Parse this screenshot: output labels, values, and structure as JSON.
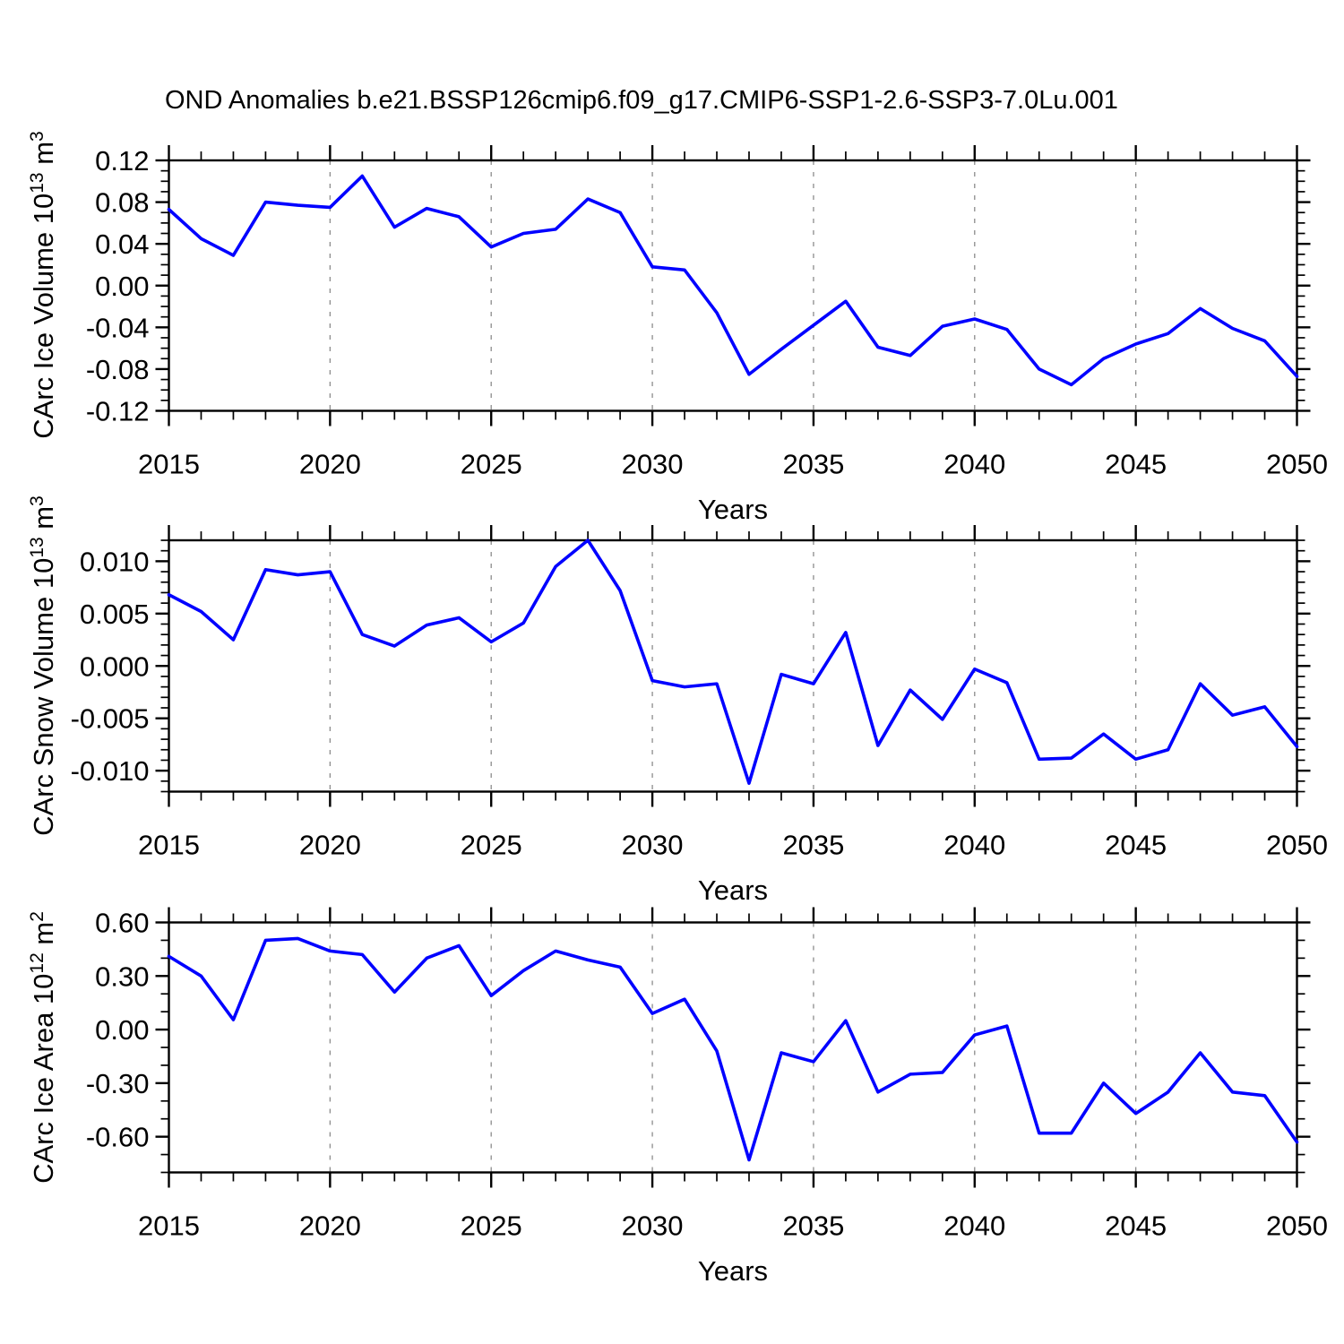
{
  "title": "OND Anomalies b.e21.BSSP126cmip6.f09_g17.CMIP6-SSP1-2.6-SSP3-7.0Lu.001",
  "xlabel": "Years",
  "colors": {
    "line": "#0000ff",
    "frame": "#000000",
    "grid": "#8c8c8c",
    "text": "#000000",
    "background": "#ffffff"
  },
  "x_axis": {
    "range": [
      2015,
      2050
    ],
    "major_step": 5,
    "minor_step": 1,
    "tick_label_years": [
      "2015",
      "2020",
      "2025",
      "2030",
      "2035",
      "2040",
      "2045",
      "2050"
    ],
    "grid_years": [
      2020,
      2025,
      2030,
      2035,
      2040,
      2045
    ]
  },
  "chart_data": [
    {
      "type": "line",
      "title": "",
      "xlabel": "Years",
      "ylabel": {
        "base1": "CArc Ice Volume 10",
        "sup1": "13",
        "base2": " m",
        "sup2": "3"
      },
      "ylim": [
        -0.12,
        0.12
      ],
      "ytick_major_step": 0.04,
      "yminor_step": 0.01,
      "yticks": [
        {
          "v": 0.12,
          "label": "0.12"
        },
        {
          "v": 0.08,
          "label": "0.08"
        },
        {
          "v": 0.04,
          "label": "0.04"
        },
        {
          "v": 0.0,
          "label": "0.00"
        },
        {
          "v": -0.04,
          "label": "-0.04"
        },
        {
          "v": -0.08,
          "label": "-0.08"
        },
        {
          "v": -0.12,
          "label": "-0.12"
        }
      ],
      "x": [
        2015,
        2016,
        2017,
        2018,
        2019,
        2020,
        2021,
        2022,
        2023,
        2024,
        2025,
        2026,
        2027,
        2028,
        2029,
        2030,
        2031,
        2032,
        2033,
        2034,
        2035,
        2036,
        2037,
        2038,
        2039,
        2040,
        2041,
        2042,
        2043,
        2044,
        2045,
        2046,
        2047,
        2048,
        2049,
        2050
      ],
      "values": [
        0.073,
        0.045,
        0.029,
        0.08,
        0.077,
        0.075,
        0.105,
        0.056,
        0.074,
        0.066,
        0.037,
        0.05,
        0.054,
        0.083,
        0.07,
        0.018,
        0.015,
        -0.026,
        -0.085,
        -0.061,
        -0.038,
        -0.015,
        -0.059,
        -0.067,
        -0.039,
        -0.032,
        -0.042,
        -0.08,
        -0.095,
        -0.07,
        -0.056,
        -0.046,
        -0.022,
        -0.041,
        -0.053,
        -0.087
      ]
    },
    {
      "type": "line",
      "title": "",
      "xlabel": "Years",
      "ylabel": {
        "base1": "CArc Snow Volume 10",
        "sup1": "13",
        "base2": " m",
        "sup2": "3"
      },
      "ylim": [
        -0.012,
        0.012
      ],
      "ytick_major_step": 0.005,
      "yminor_step": 0.001,
      "yticks": [
        {
          "v": 0.01,
          "label": "0.010"
        },
        {
          "v": 0.005,
          "label": "0.005"
        },
        {
          "v": 0.0,
          "label": "0.000"
        },
        {
          "v": -0.005,
          "label": "-0.005"
        },
        {
          "v": -0.01,
          "label": "-0.010"
        }
      ],
      "x": [
        2015,
        2016,
        2017,
        2018,
        2019,
        2020,
        2021,
        2022,
        2023,
        2024,
        2025,
        2026,
        2027,
        2028,
        2029,
        2030,
        2031,
        2032,
        2033,
        2034,
        2035,
        2036,
        2037,
        2038,
        2039,
        2040,
        2041,
        2042,
        2043,
        2044,
        2045,
        2046,
        2047,
        2048,
        2049,
        2050
      ],
      "values": [
        0.0068,
        0.0052,
        0.0025,
        0.0092,
        0.0087,
        0.009,
        0.003,
        0.0019,
        0.0039,
        0.0046,
        0.0023,
        0.0041,
        0.0095,
        0.012,
        0.0072,
        -0.0014,
        -0.002,
        -0.0017,
        -0.0112,
        -0.0008,
        -0.0017,
        0.0032,
        -0.0076,
        -0.0023,
        -0.0051,
        -0.0003,
        -0.0016,
        -0.0089,
        -0.0088,
        -0.0065,
        -0.0089,
        -0.008,
        -0.0017,
        -0.0047,
        -0.0039,
        -0.0077
      ]
    },
    {
      "type": "line",
      "title": "",
      "xlabel": "Years",
      "ylabel": {
        "base1": "CArc Ice Area 10",
        "sup1": "12",
        "base2": " m",
        "sup2": "2"
      },
      "ylim": [
        -0.8,
        0.6
      ],
      "ytick_major_step": 0.3,
      "yminor_step": 0.1,
      "yticks": [
        {
          "v": 0.6,
          "label": "0.60"
        },
        {
          "v": 0.3,
          "label": "0.30"
        },
        {
          "v": 0.0,
          "label": "0.00"
        },
        {
          "v": -0.3,
          "label": "-0.30"
        },
        {
          "v": -0.6,
          "label": "-0.60"
        }
      ],
      "x": [
        2015,
        2016,
        2017,
        2018,
        2019,
        2020,
        2021,
        2022,
        2023,
        2024,
        2025,
        2026,
        2027,
        2028,
        2029,
        2030,
        2031,
        2032,
        2033,
        2034,
        2035,
        2036,
        2037,
        2038,
        2039,
        2040,
        2041,
        2042,
        2043,
        2044,
        2045,
        2046,
        2047,
        2048,
        2049,
        2050
      ],
      "values": [
        0.41,
        0.3,
        0.055,
        0.5,
        0.51,
        0.44,
        0.42,
        0.21,
        0.4,
        0.47,
        0.19,
        0.33,
        0.44,
        0.39,
        0.35,
        0.09,
        0.17,
        -0.12,
        -0.73,
        -0.13,
        -0.18,
        0.05,
        -0.35,
        -0.25,
        -0.24,
        -0.03,
        0.02,
        -0.58,
        -0.58,
        -0.3,
        -0.47,
        -0.35,
        -0.13,
        -0.35,
        -0.37,
        -0.63
      ]
    }
  ]
}
